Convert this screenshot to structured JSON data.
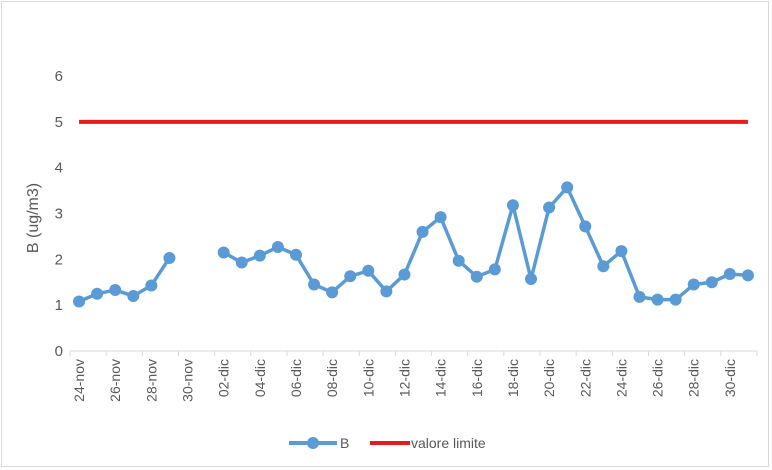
{
  "chart_data": {
    "type": "line",
    "ylabel": "B (ug/m3)",
    "ylim": [
      0,
      6
    ],
    "yticks": [
      0,
      1,
      2,
      3,
      4,
      5,
      6
    ],
    "grid": false,
    "legend_position": "bottom",
    "x": [
      "24-nov",
      "25-nov",
      "26-nov",
      "27-nov",
      "28-nov",
      "29-nov",
      "30-nov",
      "01-dic",
      "02-dic",
      "03-dic",
      "04-dic",
      "05-dic",
      "06-dic",
      "07-dic",
      "08-dic",
      "09-dic",
      "10-dic",
      "11-dic",
      "12-dic",
      "13-dic",
      "14-dic",
      "15-dic",
      "16-dic",
      "17-dic",
      "18-dic",
      "19-dic",
      "20-dic",
      "21-dic",
      "22-dic",
      "23-dic",
      "24-dic",
      "25-dic",
      "26-dic",
      "27-dic",
      "28-dic",
      "29-dic",
      "30-dic",
      "31-dic"
    ],
    "xtick_labels": [
      "24-nov",
      "26-nov",
      "28-nov",
      "30-nov",
      "02-dic",
      "04-dic",
      "06-dic",
      "08-dic",
      "10-dic",
      "12-dic",
      "14-dic",
      "16-dic",
      "18-dic",
      "20-dic",
      "22-dic",
      "24-dic",
      "26-dic",
      "28-dic",
      "30-dic"
    ],
    "series": [
      {
        "name": "B",
        "color": "#5b9bd5",
        "values": [
          1.08,
          1.25,
          1.33,
          1.2,
          1.43,
          2.03,
          null,
          null,
          2.15,
          1.93,
          2.08,
          2.27,
          2.1,
          1.45,
          1.28,
          1.63,
          1.75,
          1.3,
          1.67,
          2.6,
          2.92,
          1.97,
          1.62,
          1.78,
          3.18,
          1.57,
          3.13,
          3.57,
          2.72,
          1.85,
          2.18,
          1.18,
          1.12,
          1.12,
          1.45,
          1.5,
          1.68,
          1.65
        ]
      },
      {
        "name": "valore limite",
        "color": "#e61c1c",
        "values": [
          5,
          5,
          5,
          5,
          5,
          5,
          5,
          5,
          5,
          5,
          5,
          5,
          5,
          5,
          5,
          5,
          5,
          5,
          5,
          5,
          5,
          5,
          5,
          5,
          5,
          5,
          5,
          5,
          5,
          5,
          5,
          5,
          5,
          5,
          5,
          5,
          5,
          5
        ]
      }
    ]
  }
}
